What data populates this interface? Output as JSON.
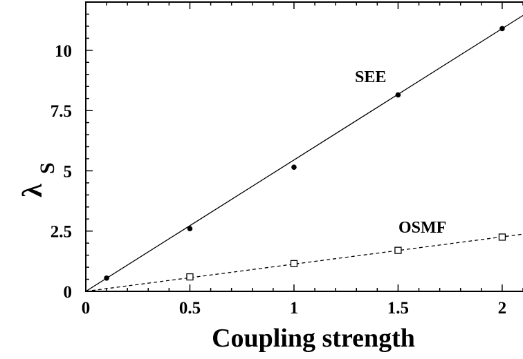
{
  "chart_data": {
    "type": "scatter",
    "title": "",
    "xlabel": "Coupling strength",
    "ylabel": "λ",
    "ylabel_subscript": "S",
    "xlim": [
      0,
      2.1
    ],
    "ylim": [
      0,
      12
    ],
    "x_ticks": [
      {
        "value": 0,
        "label": "0"
      },
      {
        "value": 0.5,
        "label": "0.5"
      },
      {
        "value": 1,
        "label": "1"
      },
      {
        "value": 1.5,
        "label": "1.5"
      },
      {
        "value": 2,
        "label": "2"
      }
    ],
    "y_ticks": [
      {
        "value": 0,
        "label": "0"
      },
      {
        "value": 2.5,
        "label": "2.5"
      },
      {
        "value": 5,
        "label": "5"
      },
      {
        "value": 7.5,
        "label": "7.5"
      },
      {
        "value": 10,
        "label": "10"
      }
    ],
    "grid": false,
    "legend": "none",
    "series": [
      {
        "name": "SEE",
        "marker": "filled-circle",
        "line_style": "solid",
        "color": "#000000",
        "points": [
          {
            "x": 0.1,
            "y": 0.55
          },
          {
            "x": 0.5,
            "y": 2.6
          },
          {
            "x": 1.0,
            "y": 5.15
          },
          {
            "x": 1.5,
            "y": 8.15
          },
          {
            "x": 2.0,
            "y": 10.9
          }
        ],
        "fit": {
          "slope": 5.45,
          "intercept": 0
        }
      },
      {
        "name": "OSMF",
        "marker": "open-square",
        "line_style": "dashed",
        "color": "#000000",
        "points": [
          {
            "x": 0.5,
            "y": 0.6
          },
          {
            "x": 1.0,
            "y": 1.15
          },
          {
            "x": 1.5,
            "y": 1.7
          },
          {
            "x": 2.0,
            "y": 2.25
          }
        ],
        "fit": {
          "slope": 1.13,
          "intercept": 0
        }
      }
    ],
    "annotations": [
      {
        "text": "SEE",
        "series": "SEE"
      },
      {
        "text": "OSMF",
        "series": "OSMF"
      }
    ]
  }
}
